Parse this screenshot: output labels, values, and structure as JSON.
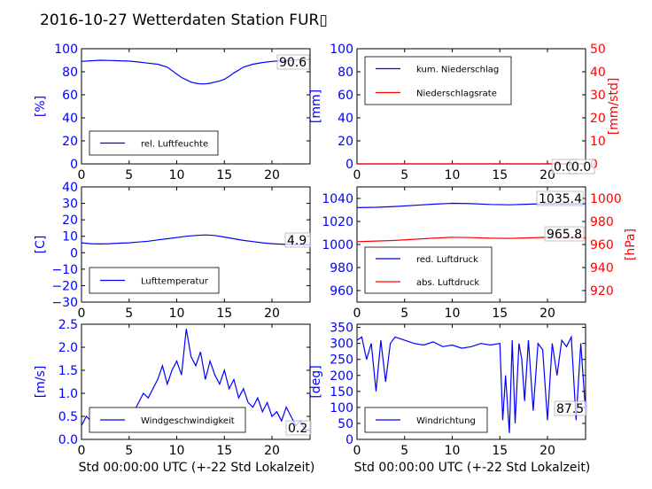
{
  "title": "2016-10-27 Wetterdaten Station FUR▯",
  "colors": {
    "blue": "#0000ff",
    "red": "#ff0000",
    "black": "#000000"
  },
  "chart_data": [
    {
      "type": "line",
      "ylabel": "[%]",
      "xlabel": "",
      "xlim": [
        0,
        24
      ],
      "ylim": [
        0,
        100
      ],
      "xticks": [
        "0",
        "5",
        "10",
        "15",
        "20"
      ],
      "yticks": [
        "0",
        "20",
        "40",
        "60",
        "80",
        "100"
      ],
      "series": [
        {
          "name": "rel. Luftfeuchte",
          "color": "blue",
          "x": [
            0,
            1,
            2,
            3,
            4,
            5,
            6,
            7,
            8,
            9,
            9.5,
            10,
            10.5,
            11,
            11.5,
            12,
            12.5,
            13,
            13.5,
            14,
            14.5,
            15,
            15.5,
            16,
            16.5,
            17,
            18,
            19,
            20,
            21,
            22,
            23,
            24
          ],
          "y": [
            89,
            89.5,
            90,
            89.8,
            89.5,
            89.2,
            88.5,
            87.5,
            86.5,
            84,
            81,
            78,
            75,
            73,
            71,
            70,
            69.5,
            69.5,
            70,
            71,
            72,
            73.5,
            76,
            79,
            81.5,
            84,
            86.5,
            88,
            89,
            89.5,
            90,
            90.5,
            90.6
          ]
        }
      ],
      "annotation": "90.6"
    },
    {
      "type": "line",
      "ylabel": "[mm]",
      "y2label": "[mm/std]",
      "xlim": [
        0,
        24
      ],
      "ylim": [
        0,
        100
      ],
      "y2lim": [
        0,
        50
      ],
      "xticks": [
        "0",
        "5",
        "10",
        "15",
        "20"
      ],
      "yticks": [
        "0",
        "20",
        "40",
        "60",
        "80",
        "100"
      ],
      "y2ticks": [
        "0",
        "10",
        "20",
        "30",
        "40",
        "50"
      ],
      "series": [
        {
          "name": "kum. Niederschlag",
          "color": "blue",
          "axis": "left",
          "x": [
            0,
            24
          ],
          "y": [
            0,
            0
          ]
        },
        {
          "name": "Niederschlagsrate",
          "color": "red",
          "axis": "right",
          "x": [
            0,
            24
          ],
          "y": [
            0,
            0
          ]
        }
      ],
      "annotations": [
        "0.0",
        "0.0"
      ]
    },
    {
      "type": "line",
      "ylabel": "[C]",
      "xlim": [
        0,
        24
      ],
      "ylim": [
        -30,
        40
      ],
      "xticks": [
        "0",
        "5",
        "10",
        "15",
        "20"
      ],
      "yticks": [
        "−30",
        "−20",
        "−10",
        "0",
        "10",
        "20",
        "30",
        "40"
      ],
      "series": [
        {
          "name": "Lufttemperatur",
          "color": "blue",
          "x": [
            0,
            1,
            2,
            3,
            4,
            5,
            6,
            7,
            8,
            9,
            10,
            11,
            12,
            13,
            14,
            15,
            16,
            17,
            18,
            19,
            20,
            21,
            22,
            23,
            24
          ],
          "y": [
            6,
            5.5,
            5.3,
            5.5,
            5.8,
            6,
            6.5,
            7,
            7.8,
            8.5,
            9.2,
            10,
            10.5,
            10.8,
            10.5,
            9.5,
            8.5,
            7.5,
            6.8,
            6,
            5.5,
            5.2,
            5,
            4.9,
            4.9
          ]
        }
      ],
      "annotation": "4.9"
    },
    {
      "type": "line",
      "ylabel": "[hPa]",
      "xlim": [
        0,
        24
      ],
      "ylim": [
        950,
        1050
      ],
      "y2lim": [
        910,
        1010
      ],
      "xticks": [
        "0",
        "5",
        "10",
        "15",
        "20"
      ],
      "yticks": [
        "960",
        "980",
        "1000",
        "1020",
        "1040"
      ],
      "y2ticks": [
        "920",
        "940",
        "960",
        "980",
        "1000"
      ],
      "series": [
        {
          "name": "red. Luftdruck",
          "color": "blue",
          "axis": "left",
          "x": [
            0,
            2,
            4,
            6,
            8,
            10,
            12,
            14,
            16,
            18,
            20,
            22,
            24
          ],
          "y": [
            1032,
            1032.3,
            1033,
            1034,
            1035,
            1035.8,
            1035.5,
            1034.8,
            1034.5,
            1035,
            1035.5,
            1035.4,
            1035.4
          ]
        },
        {
          "name": "abs. Luftdruck",
          "color": "red",
          "axis": "right",
          "x": [
            0,
            2,
            4,
            6,
            8,
            10,
            12,
            14,
            16,
            18,
            20,
            22,
            24
          ],
          "y": [
            962.5,
            963,
            963.5,
            964.5,
            965.5,
            966.3,
            966,
            965.5,
            965.3,
            965.8,
            966.2,
            965.9,
            965.8
          ]
        }
      ],
      "annotations": [
        "1035.4",
        "965.8"
      ]
    },
    {
      "type": "line",
      "ylabel": "[m/s]",
      "xlim": [
        0,
        24
      ],
      "ylim": [
        0,
        2.5
      ],
      "xticks": [
        "0",
        "5",
        "10",
        "15",
        "20"
      ],
      "yticks": [
        "0.0",
        "0.5",
        "1.0",
        "1.5",
        "2.0",
        "2.5"
      ],
      "series": [
        {
          "name": "Windgeschwindigkeit",
          "color": "blue",
          "x": [
            0,
            0.5,
            1,
            1.5,
            2,
            2.5,
            3,
            3.5,
            4,
            4.5,
            5,
            5.5,
            6,
            6.5,
            7,
            7.5,
            8,
            8.5,
            9,
            9.5,
            10,
            10.5,
            11,
            11.5,
            12,
            12.5,
            13,
            13.5,
            14,
            14.5,
            15,
            15.5,
            16,
            16.5,
            17,
            17.5,
            18,
            18.5,
            19,
            19.5,
            20,
            20.5,
            21,
            21.5,
            22,
            22.5,
            23,
            23.5,
            24
          ],
          "y": [
            0.3,
            0.5,
            0.4,
            0.6,
            0.3,
            0.5,
            0.4,
            0.6,
            0.5,
            0.4,
            0.5,
            0.6,
            0.8,
            1.0,
            0.9,
            1.1,
            1.3,
            1.6,
            1.2,
            1.5,
            1.7,
            1.4,
            2.4,
            1.8,
            1.6,
            1.9,
            1.3,
            1.7,
            1.4,
            1.2,
            1.5,
            1.1,
            1.3,
            0.9,
            1.1,
            0.8,
            0.7,
            0.9,
            0.6,
            0.8,
            0.5,
            0.6,
            0.4,
            0.7,
            0.5,
            0.3,
            0.4,
            0.2,
            0.2
          ]
        }
      ],
      "annotation": "0.2"
    },
    {
      "type": "line",
      "ylabel": "[deg]",
      "xlim": [
        0,
        24
      ],
      "ylim": [
        0,
        360
      ],
      "xticks": [
        "0",
        "5",
        "10",
        "15",
        "20"
      ],
      "yticks": [
        "0",
        "50",
        "100",
        "150",
        "200",
        "250",
        "300",
        "350"
      ],
      "series": [
        {
          "name": "Windrichtung",
          "color": "blue",
          "x": [
            0,
            0.5,
            1,
            1.5,
            2,
            2.5,
            3,
            3.5,
            4,
            5,
            6,
            7,
            8,
            9,
            10,
            11,
            12,
            13,
            14,
            15,
            15.3,
            15.6,
            16,
            16.3,
            16.6,
            17,
            17.3,
            17.6,
            18,
            18.5,
            19,
            19.5,
            20,
            20.5,
            21,
            21.5,
            22,
            22.5,
            23,
            23.5,
            24
          ],
          "y": [
            310,
            320,
            250,
            300,
            150,
            310,
            180,
            300,
            320,
            310,
            300,
            295,
            305,
            290,
            295,
            285,
            290,
            300,
            295,
            300,
            60,
            200,
            20,
            310,
            50,
            300,
            250,
            120,
            310,
            90,
            300,
            280,
            60,
            300,
            200,
            310,
            290,
            320,
            60,
            300,
            87.5
          ]
        }
      ],
      "annotation": "87.5"
    }
  ],
  "xlabel_bottom": "Std 00:00:00 UTC (+-22 Std Lokalzeit)"
}
